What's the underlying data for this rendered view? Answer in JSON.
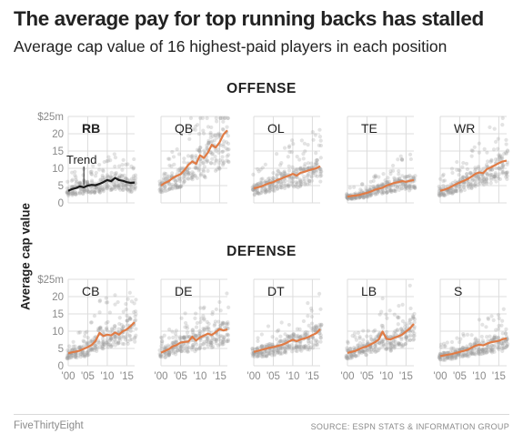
{
  "title": "The average pay for top running backs has stalled",
  "subtitle": "Average cap value of 16 highest-paid players in each position",
  "ylabel": "Average cap value",
  "sections": {
    "offense": "OFFENSE",
    "defense": "DEFENSE"
  },
  "footer": {
    "source": "SOURCE: ESPN STATS & INFORMATION GROUP",
    "brand": "FiveThirtyEight"
  },
  "colors": {
    "trend": "#e07b45",
    "rb_trend": "#1a1a1a",
    "dots": "#9a9a9a",
    "grid": "#dcdcdc"
  },
  "chart_data": [
    {
      "type": "line",
      "panel": "RB",
      "annotation": "Trend",
      "x": [
        2000,
        2001,
        2002,
        2003,
        2004,
        2005,
        2006,
        2007,
        2008,
        2009,
        2010,
        2011,
        2012,
        2013,
        2014,
        2015,
        2016,
        2017
      ],
      "y": [
        3.5,
        4.0,
        4.3,
        4.8,
        4.5,
        5.0,
        5.2,
        5.1,
        5.5,
        6.0,
        6.6,
        6.3,
        7.2,
        6.6,
        6.4,
        6.0,
        5.8,
        5.9
      ],
      "xlim": [
        2000,
        2017
      ],
      "ylim": [
        0,
        25
      ],
      "yticks": [
        "$25m",
        "20",
        "15",
        "10",
        "5",
        "0"
      ],
      "xticks": [
        "'00",
        "'05",
        "'10",
        "'15"
      ]
    },
    {
      "type": "line",
      "panel": "QB",
      "x": [
        2000,
        2001,
        2002,
        2003,
        2004,
        2005,
        2006,
        2007,
        2008,
        2009,
        2010,
        2011,
        2012,
        2013,
        2014,
        2015,
        2016,
        2017
      ],
      "y": [
        5.0,
        5.8,
        6.3,
        7.2,
        7.8,
        8.3,
        9.5,
        11.0,
        12.0,
        11.3,
        13.8,
        13.0,
        14.5,
        16.8,
        16.0,
        17.5,
        19.8,
        21.0
      ],
      "xlim": [
        2000,
        2017
      ],
      "ylim": [
        0,
        25
      ]
    },
    {
      "type": "line",
      "panel": "OL",
      "x": [
        2000,
        2001,
        2002,
        2003,
        2004,
        2005,
        2006,
        2007,
        2008,
        2009,
        2010,
        2011,
        2012,
        2013,
        2014,
        2015,
        2016,
        2017
      ],
      "y": [
        4.2,
        4.5,
        4.8,
        5.3,
        5.7,
        6.0,
        6.6,
        7.0,
        7.5,
        7.9,
        8.4,
        7.9,
        8.7,
        9.0,
        9.4,
        9.7,
        10.0,
        10.6
      ],
      "xlim": [
        2000,
        2017
      ],
      "ylim": [
        0,
        25
      ]
    },
    {
      "type": "line",
      "panel": "TE",
      "x": [
        2000,
        2001,
        2002,
        2003,
        2004,
        2005,
        2006,
        2007,
        2008,
        2009,
        2010,
        2011,
        2012,
        2013,
        2014,
        2015,
        2016,
        2017
      ],
      "y": [
        1.8,
        2.0,
        2.1,
        2.3,
        2.6,
        2.9,
        3.3,
        3.8,
        4.1,
        4.4,
        5.0,
        5.4,
        5.8,
        6.0,
        6.3,
        6.1,
        6.4,
        6.6
      ],
      "xlim": [
        2000,
        2017
      ],
      "ylim": [
        0,
        25
      ]
    },
    {
      "type": "line",
      "panel": "WR",
      "x": [
        2000,
        2001,
        2002,
        2003,
        2004,
        2005,
        2006,
        2007,
        2008,
        2009,
        2010,
        2011,
        2012,
        2013,
        2014,
        2015,
        2016,
        2017
      ],
      "y": [
        3.5,
        3.8,
        4.2,
        4.8,
        5.4,
        5.9,
        6.4,
        6.9,
        7.6,
        8.4,
        8.8,
        8.6,
        9.8,
        10.3,
        10.9,
        11.5,
        12.0,
        12.2
      ],
      "xlim": [
        2000,
        2017
      ],
      "ylim": [
        0,
        25
      ]
    },
    {
      "type": "line",
      "panel": "CB",
      "x": [
        2000,
        2001,
        2002,
        2003,
        2004,
        2005,
        2006,
        2007,
        2008,
        2009,
        2010,
        2011,
        2012,
        2013,
        2014,
        2015,
        2016,
        2017
      ],
      "y": [
        3.6,
        3.9,
        4.1,
        4.4,
        4.9,
        5.4,
        6.0,
        7.2,
        9.5,
        8.6,
        9.0,
        8.8,
        9.6,
        9.0,
        10.0,
        10.5,
        11.5,
        12.6
      ],
      "xlim": [
        2000,
        2017
      ],
      "ylim": [
        0,
        25
      ],
      "yticks": [
        "$25m",
        "20",
        "15",
        "10",
        "5",
        "0"
      ],
      "xticks": [
        "'00",
        "'05",
        "'10",
        "'15"
      ]
    },
    {
      "type": "line",
      "panel": "DE",
      "x": [
        2000,
        2001,
        2002,
        2003,
        2004,
        2005,
        2006,
        2007,
        2008,
        2009,
        2010,
        2011,
        2012,
        2013,
        2014,
        2015,
        2016,
        2017
      ],
      "y": [
        3.8,
        4.3,
        4.8,
        5.6,
        6.0,
        6.7,
        6.9,
        7.0,
        8.4,
        7.3,
        8.2,
        8.7,
        9.3,
        8.9,
        9.7,
        10.6,
        10.2,
        10.5
      ],
      "xlim": [
        2000,
        2017
      ],
      "ylim": [
        0,
        25
      ]
    },
    {
      "type": "line",
      "panel": "DT",
      "x": [
        2000,
        2001,
        2002,
        2003,
        2004,
        2005,
        2006,
        2007,
        2008,
        2009,
        2010,
        2011,
        2012,
        2013,
        2014,
        2015,
        2016,
        2017
      ],
      "y": [
        4.0,
        4.3,
        4.6,
        4.9,
        5.2,
        5.4,
        5.7,
        6.0,
        6.4,
        7.0,
        7.5,
        7.1,
        7.6,
        7.9,
        8.3,
        8.9,
        9.4,
        10.6
      ],
      "xlim": [
        2000,
        2017
      ],
      "ylim": [
        0,
        25
      ]
    },
    {
      "type": "line",
      "panel": "LB",
      "x": [
        2000,
        2001,
        2002,
        2003,
        2004,
        2005,
        2006,
        2007,
        2008,
        2009,
        2010,
        2011,
        2012,
        2013,
        2014,
        2015,
        2016,
        2017
      ],
      "y": [
        3.7,
        4.0,
        4.3,
        4.8,
        5.3,
        5.6,
        6.2,
        6.8,
        7.6,
        9.9,
        7.8,
        7.6,
        8.1,
        8.5,
        9.0,
        9.9,
        10.8,
        12.1
      ],
      "xlim": [
        2000,
        2017
      ],
      "ylim": [
        0,
        25
      ]
    },
    {
      "type": "line",
      "panel": "S",
      "x": [
        2000,
        2001,
        2002,
        2003,
        2004,
        2005,
        2006,
        2007,
        2008,
        2009,
        2010,
        2011,
        2012,
        2013,
        2014,
        2015,
        2016,
        2017
      ],
      "y": [
        2.8,
        3.0,
        3.2,
        3.4,
        3.7,
        4.0,
        4.3,
        4.6,
        5.2,
        5.8,
        6.1,
        5.9,
        6.4,
        6.8,
        7.0,
        7.2,
        7.7,
        7.9
      ],
      "xlim": [
        2000,
        2017
      ],
      "ylim": [
        0,
        25
      ]
    }
  ]
}
